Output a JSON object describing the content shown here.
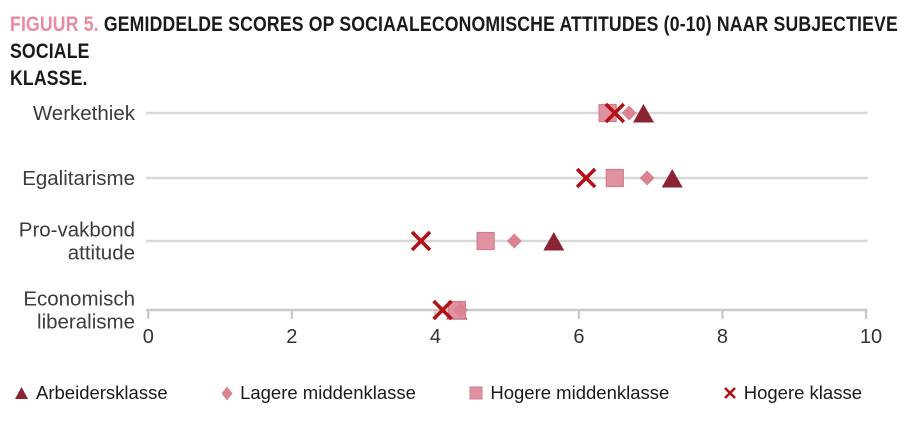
{
  "title": {
    "prefix": "FIGUUR 5.",
    "line1": "GEMIDDELDE SCORES OP SOCIAALECONOMISCHE ATTITUDES (0-10) NAAR SUBJECTIEVE SOCIALE",
    "line2": "KLASSE."
  },
  "colors": {
    "accent_pink": "#e98ba0",
    "triangle": "#8b2332",
    "diamond": "#db8293",
    "square": "#e192a1",
    "square_border": "#d07c8e",
    "x_mark": "#b11117",
    "gridline": "#d8d8d8",
    "axis_line": "#c9c9c9",
    "label_text": "#3c3c3c",
    "tick_text": "#333333"
  },
  "chart_data": {
    "type": "scatter",
    "subtype": "dot-plot",
    "categories": [
      "Werkethiek",
      "Egalitarisme",
      "Pro-vakbond attitude",
      "Economisch liberalisme"
    ],
    "category_label_lines": [
      [
        "Werkethiek"
      ],
      [
        "Egalitarisme"
      ],
      [
        "Pro-vakbond",
        "attitude"
      ],
      [
        "Economisch",
        "liberalisme"
      ]
    ],
    "xlim": [
      0,
      10
    ],
    "xticks": [
      "0",
      "2",
      "4",
      "6",
      "8",
      "10"
    ],
    "xtick_values": [
      0,
      2,
      4,
      6,
      8,
      10
    ],
    "grid": "horizontal-category-lines",
    "legend_position": "bottom",
    "series": [
      {
        "name": "Arbeidersklasse",
        "marker": "triangle",
        "values": [
          6.9,
          7.3,
          5.65,
          4.3
        ]
      },
      {
        "name": "Lagere middenklasse",
        "marker": "diamond",
        "values": [
          6.7,
          6.95,
          5.1,
          4.35
        ]
      },
      {
        "name": "Hogere middenklasse",
        "marker": "square",
        "values": [
          6.4,
          6.5,
          4.7,
          4.3
        ]
      },
      {
        "name": "Hogere klasse",
        "marker": "x",
        "values": [
          6.5,
          6.1,
          3.8,
          4.1
        ]
      }
    ]
  }
}
